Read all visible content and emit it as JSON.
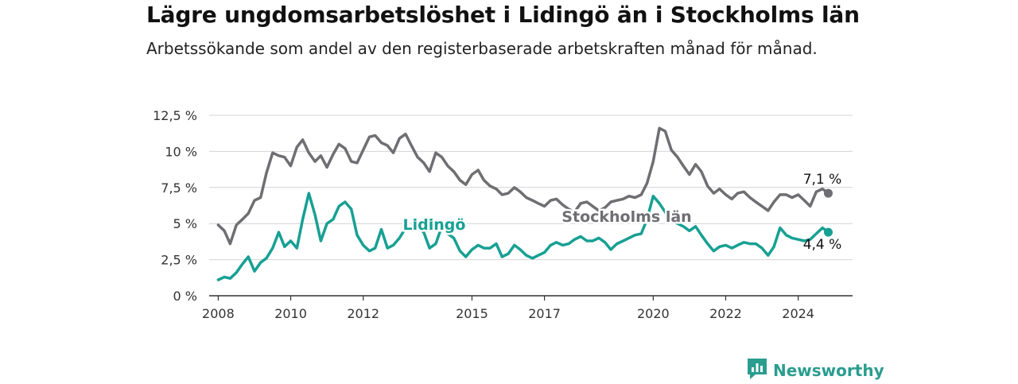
{
  "title": "Lägre ungdomsarbetslöshet i Lidingö än i Stockholms län",
  "subtitle": "Arbetssökande som andel av den registerbaserade arbetskraften månad för månad.",
  "brand": {
    "name": "Newsworthy",
    "icon": "bar-chart-speech-bubble-icon",
    "color": "#2a9d8f"
  },
  "chart_data": {
    "type": "line",
    "y_tick_labels": [
      "0 %",
      "2,5 %",
      "5 %",
      "7,5 %",
      "10 %",
      "12,5 %"
    ],
    "y_tick_values": [
      0,
      2.5,
      5,
      7.5,
      10,
      12.5
    ],
    "x_tick_labels": [
      "2008",
      "2010",
      "2012",
      "2015",
      "2017",
      "2020",
      "2022",
      "2024"
    ],
    "ylim": [
      0,
      12.5
    ],
    "xlim": [
      2007.75,
      2025.5
    ],
    "grid": true,
    "series": [
      {
        "name": "Stockholms län",
        "color": "#6e6e73",
        "end_label": "7,1 %",
        "x": [
          2008.0,
          2008.17,
          2008.33,
          2008.5,
          2008.67,
          2008.83,
          2009.0,
          2009.17,
          2009.33,
          2009.5,
          2009.67,
          2009.83,
          2010.0,
          2010.17,
          2010.33,
          2010.5,
          2010.67,
          2010.83,
          2011.0,
          2011.17,
          2011.33,
          2011.5,
          2011.67,
          2011.83,
          2012.0,
          2012.17,
          2012.33,
          2012.5,
          2012.67,
          2012.83,
          2013.0,
          2013.17,
          2013.33,
          2013.5,
          2013.67,
          2013.83,
          2014.0,
          2014.17,
          2014.33,
          2014.5,
          2014.67,
          2014.83,
          2015.0,
          2015.17,
          2015.33,
          2015.5,
          2015.67,
          2015.83,
          2016.0,
          2016.17,
          2016.33,
          2016.5,
          2016.67,
          2016.83,
          2017.0,
          2017.17,
          2017.33,
          2017.5,
          2017.67,
          2017.83,
          2018.0,
          2018.17,
          2018.33,
          2018.5,
          2018.67,
          2018.83,
          2019.0,
          2019.17,
          2019.33,
          2019.5,
          2019.67,
          2019.83,
          2020.0,
          2020.17,
          2020.33,
          2020.5,
          2020.67,
          2020.83,
          2021.0,
          2021.17,
          2021.33,
          2021.5,
          2021.67,
          2021.83,
          2022.0,
          2022.17,
          2022.33,
          2022.5,
          2022.67,
          2022.83,
          2023.0,
          2023.17,
          2023.33,
          2023.5,
          2023.67,
          2023.83,
          2024.0,
          2024.17,
          2024.33,
          2024.5,
          2024.67,
          2024.83
        ],
        "values": [
          4.9,
          4.5,
          3.6,
          4.9,
          5.3,
          5.7,
          6.6,
          6.8,
          8.5,
          9.9,
          9.7,
          9.6,
          9.0,
          10.3,
          10.8,
          9.9,
          9.3,
          9.7,
          8.9,
          9.8,
          10.5,
          10.2,
          9.3,
          9.2,
          10.1,
          11.0,
          11.1,
          10.6,
          10.4,
          9.9,
          10.9,
          11.2,
          10.4,
          9.6,
          9.2,
          8.6,
          9.9,
          9.6,
          9.0,
          8.6,
          8.0,
          7.7,
          8.4,
          8.7,
          8.0,
          7.6,
          7.4,
          7.0,
          7.1,
          7.5,
          7.2,
          6.8,
          6.6,
          6.4,
          6.2,
          6.6,
          6.7,
          6.3,
          6.0,
          5.8,
          6.4,
          6.5,
          6.2,
          5.9,
          6.1,
          6.5,
          6.6,
          6.7,
          6.9,
          6.8,
          7.0,
          7.8,
          9.3,
          11.6,
          11.4,
          10.1,
          9.6,
          9.0,
          8.4,
          9.1,
          8.6,
          7.6,
          7.1,
          7.4,
          7.0,
          6.7,
          7.1,
          7.2,
          6.8,
          6.5,
          6.2,
          5.9,
          6.5,
          7.0,
          7.0,
          6.8,
          7.0,
          6.6,
          6.2,
          7.2,
          7.4,
          7.1
        ]
      },
      {
        "name": "Lidingö",
        "color": "#17a093",
        "end_label": "4,4 %",
        "x": [
          2008.0,
          2008.17,
          2008.33,
          2008.5,
          2008.67,
          2008.83,
          2009.0,
          2009.17,
          2009.33,
          2009.5,
          2009.67,
          2009.83,
          2010.0,
          2010.17,
          2010.33,
          2010.5,
          2010.67,
          2010.83,
          2011.0,
          2011.17,
          2011.33,
          2011.5,
          2011.67,
          2011.83,
          2012.0,
          2012.17,
          2012.33,
          2012.5,
          2012.67,
          2012.83,
          2013.0,
          2013.17,
          2013.33,
          2013.5,
          2013.67,
          2013.83,
          2014.0,
          2014.17,
          2014.33,
          2014.5,
          2014.67,
          2014.83,
          2015.0,
          2015.17,
          2015.33,
          2015.5,
          2015.67,
          2015.83,
          2016.0,
          2016.17,
          2016.33,
          2016.5,
          2016.67,
          2016.83,
          2017.0,
          2017.17,
          2017.33,
          2017.5,
          2017.67,
          2017.83,
          2018.0,
          2018.17,
          2018.33,
          2018.5,
          2018.67,
          2018.83,
          2019.0,
          2019.17,
          2019.33,
          2019.5,
          2019.67,
          2019.83,
          2020.0,
          2020.17,
          2020.33,
          2020.5,
          2020.67,
          2020.83,
          2021.0,
          2021.17,
          2021.33,
          2021.5,
          2021.67,
          2021.83,
          2022.0,
          2022.17,
          2022.33,
          2022.5,
          2022.67,
          2022.83,
          2023.0,
          2023.17,
          2023.33,
          2023.5,
          2023.67,
          2023.83,
          2024.0,
          2024.17,
          2024.33,
          2024.5,
          2024.67,
          2024.83
        ],
        "values": [
          1.1,
          1.3,
          1.2,
          1.6,
          2.2,
          2.7,
          1.7,
          2.3,
          2.6,
          3.3,
          4.4,
          3.4,
          3.8,
          3.3,
          5.3,
          7.1,
          5.6,
          3.8,
          5.0,
          5.3,
          6.2,
          6.5,
          6.0,
          4.2,
          3.5,
          3.1,
          3.3,
          4.6,
          3.3,
          3.5,
          4.0,
          4.7,
          4.6,
          4.7,
          4.4,
          3.3,
          3.6,
          4.8,
          4.3,
          4.0,
          3.1,
          2.7,
          3.2,
          3.5,
          3.3,
          3.3,
          3.6,
          2.7,
          2.9,
          3.5,
          3.2,
          2.8,
          2.6,
          2.8,
          3.0,
          3.5,
          3.7,
          3.5,
          3.6,
          3.9,
          4.1,
          3.8,
          3.8,
          4.0,
          3.7,
          3.2,
          3.6,
          3.8,
          4.0,
          4.2,
          4.3,
          5.3,
          6.9,
          6.4,
          5.8,
          5.2,
          5.0,
          4.8,
          4.5,
          4.8,
          4.2,
          3.6,
          3.1,
          3.4,
          3.5,
          3.3,
          3.5,
          3.7,
          3.6,
          3.6,
          3.3,
          2.8,
          3.4,
          4.7,
          4.2,
          4.0,
          3.9,
          3.8,
          3.9,
          4.3,
          4.7,
          4.4
        ]
      }
    ]
  }
}
